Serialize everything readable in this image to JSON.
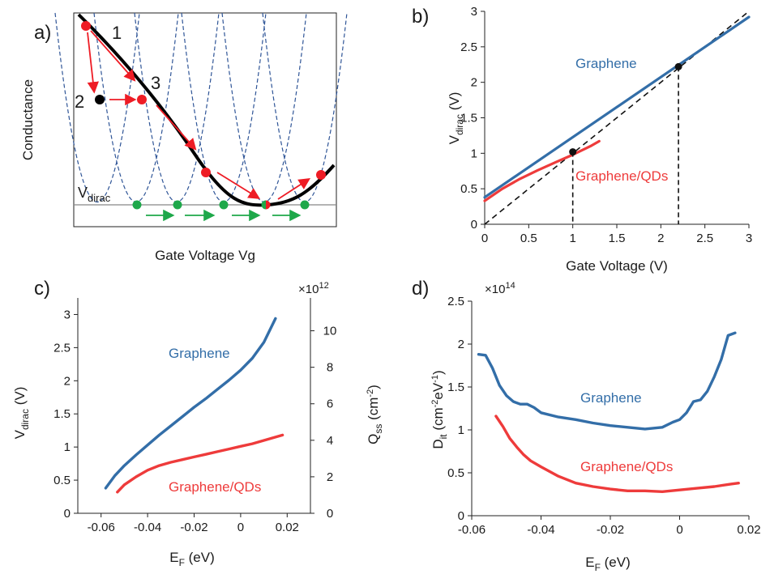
{
  "chart_data": [
    {
      "id": "a",
      "type": "diagram",
      "panel_label": "a)",
      "xlabel": "Gate Voltage Vg",
      "ylabel": "Conductance",
      "vdirac_label": "V",
      "vdirac_sub": "dirac",
      "point_labels": [
        "1",
        "2",
        "3"
      ],
      "colors": {
        "curve": "#000000",
        "dashed": "#2f5597",
        "red": "#ee1c25",
        "green": "#1ea84a",
        "baseline": "#888888"
      }
    },
    {
      "id": "b",
      "type": "line",
      "panel_label": "b)",
      "xlabel": "Gate Voltage (V)",
      "ylabel_main": "V",
      "ylabel_sub": "dirac",
      "ylabel_unit": " (V)",
      "xlim": [
        0,
        3
      ],
      "ylim": [
        0,
        3
      ],
      "xticks": [
        "0",
        "0.5",
        "1",
        "1.5",
        "2",
        "2.5",
        "3"
      ],
      "yticks": [
        "0",
        "0.5",
        "1",
        "1.5",
        "2",
        "2.5",
        "3"
      ],
      "series": [
        {
          "name": "Graphene",
          "color": "#336ea8",
          "x": [
            0,
            3
          ],
          "y": [
            0.38,
            2.92
          ]
        },
        {
          "name": "Graphene/QDs",
          "color": "#ee3b3b",
          "x": [
            0,
            0.2,
            0.4,
            0.6,
            0.8,
            1.0,
            1.2,
            1.3
          ],
          "y": [
            0.33,
            0.5,
            0.64,
            0.76,
            0.87,
            0.98,
            1.1,
            1.17
          ]
        }
      ],
      "diagonal": {
        "x": [
          0,
          3
        ],
        "y": [
          0,
          3
        ]
      },
      "markers": [
        {
          "x": 1.0,
          "y": 1.02
        },
        {
          "x": 2.2,
          "y": 2.22
        }
      ]
    },
    {
      "id": "c",
      "type": "line",
      "panel_label": "c)",
      "xlabel_main": "E",
      "xlabel_sub": "F",
      "xlabel_unit": " (eV)",
      "ylabel_main": "V",
      "ylabel_sub": "dirac",
      "ylabel_unit": " (V)",
      "y2label_main": "Q",
      "y2label_sub": "ss",
      "y2label_unit": " (cm",
      "y2label_sup": "-2",
      "y2label_end": ")",
      "exponent_base": "×10",
      "exponent_pow": "12",
      "xlim": [
        -0.07,
        0.03
      ],
      "ylim": [
        0,
        3.25
      ],
      "y2lim": [
        0,
        11.8
      ],
      "xticks": [
        "-0.06",
        "-0.04",
        "-0.02",
        "0",
        "0.02"
      ],
      "yticks": [
        "0",
        "0.5",
        "1",
        "1.5",
        "2",
        "2.5",
        "3"
      ],
      "y2ticks": [
        "0",
        "2",
        "4",
        "6",
        "8",
        "10"
      ],
      "series": [
        {
          "name": "Graphene",
          "color": "#336ea8",
          "x": [
            -0.058,
            -0.054,
            -0.05,
            -0.045,
            -0.04,
            -0.035,
            -0.03,
            -0.025,
            -0.02,
            -0.015,
            -0.01,
            -0.005,
            0,
            0.005,
            0.01,
            0.015
          ],
          "y": [
            0.38,
            0.57,
            0.72,
            0.88,
            1.03,
            1.18,
            1.32,
            1.46,
            1.6,
            1.73,
            1.87,
            2.01,
            2.16,
            2.34,
            2.58,
            2.94
          ]
        },
        {
          "name": "Graphene/QDs",
          "color": "#ee3b3b",
          "x": [
            -0.053,
            -0.05,
            -0.045,
            -0.04,
            -0.035,
            -0.03,
            -0.025,
            -0.02,
            -0.015,
            -0.01,
            -0.005,
            0,
            0.005,
            0.01,
            0.015,
            0.018
          ],
          "y": [
            0.32,
            0.43,
            0.55,
            0.65,
            0.72,
            0.77,
            0.81,
            0.85,
            0.89,
            0.93,
            0.97,
            1.01,
            1.05,
            1.1,
            1.15,
            1.18
          ]
        }
      ]
    },
    {
      "id": "d",
      "type": "line",
      "panel_label": "d)",
      "xlabel_main": "E",
      "xlabel_sub": "F",
      "xlabel_unit": " (eV)",
      "ylabel_main": "D",
      "ylabel_sub": "it",
      "ylabel_unit": " (cm",
      "ylabel_sup1": "-2",
      "ylabel_mid": "eV",
      "ylabel_sup2": "-1",
      "ylabel_end": ")",
      "exponent_base": "×10",
      "exponent_pow": "14",
      "xlim": [
        -0.06,
        0.02
      ],
      "ylim": [
        0,
        2.5
      ],
      "xticks": [
        "-0.06",
        "-0.04",
        "-0.02",
        "0",
        "0.02"
      ],
      "yticks": [
        "0",
        "0.5",
        "1",
        "1.5",
        "2",
        "2.5"
      ],
      "series": [
        {
          "name": "Graphene",
          "color": "#336ea8",
          "x": [
            -0.058,
            -0.056,
            -0.054,
            -0.052,
            -0.05,
            -0.048,
            -0.046,
            -0.044,
            -0.042,
            -0.04,
            -0.035,
            -0.03,
            -0.025,
            -0.02,
            -0.015,
            -0.01,
            -0.005,
            -0.002,
            0,
            0.002,
            0.004,
            0.006,
            0.008,
            0.01,
            0.012,
            0.014,
            0.016
          ],
          "y": [
            1.88,
            1.87,
            1.72,
            1.52,
            1.4,
            1.33,
            1.3,
            1.3,
            1.26,
            1.2,
            1.15,
            1.12,
            1.08,
            1.05,
            1.03,
            1.01,
            1.03,
            1.09,
            1.12,
            1.2,
            1.33,
            1.35,
            1.45,
            1.62,
            1.82,
            2.1,
            2.13
          ]
        },
        {
          "name": "Graphene/QDs",
          "color": "#ee3b3b",
          "x": [
            -0.053,
            -0.051,
            -0.049,
            -0.047,
            -0.045,
            -0.043,
            -0.04,
            -0.035,
            -0.03,
            -0.025,
            -0.02,
            -0.015,
            -0.01,
            -0.005,
            0,
            0.005,
            0.01,
            0.015,
            0.017
          ],
          "y": [
            1.16,
            1.04,
            0.9,
            0.8,
            0.71,
            0.64,
            0.57,
            0.46,
            0.38,
            0.34,
            0.31,
            0.29,
            0.29,
            0.28,
            0.3,
            0.32,
            0.34,
            0.37,
            0.38
          ]
        }
      ]
    }
  ]
}
